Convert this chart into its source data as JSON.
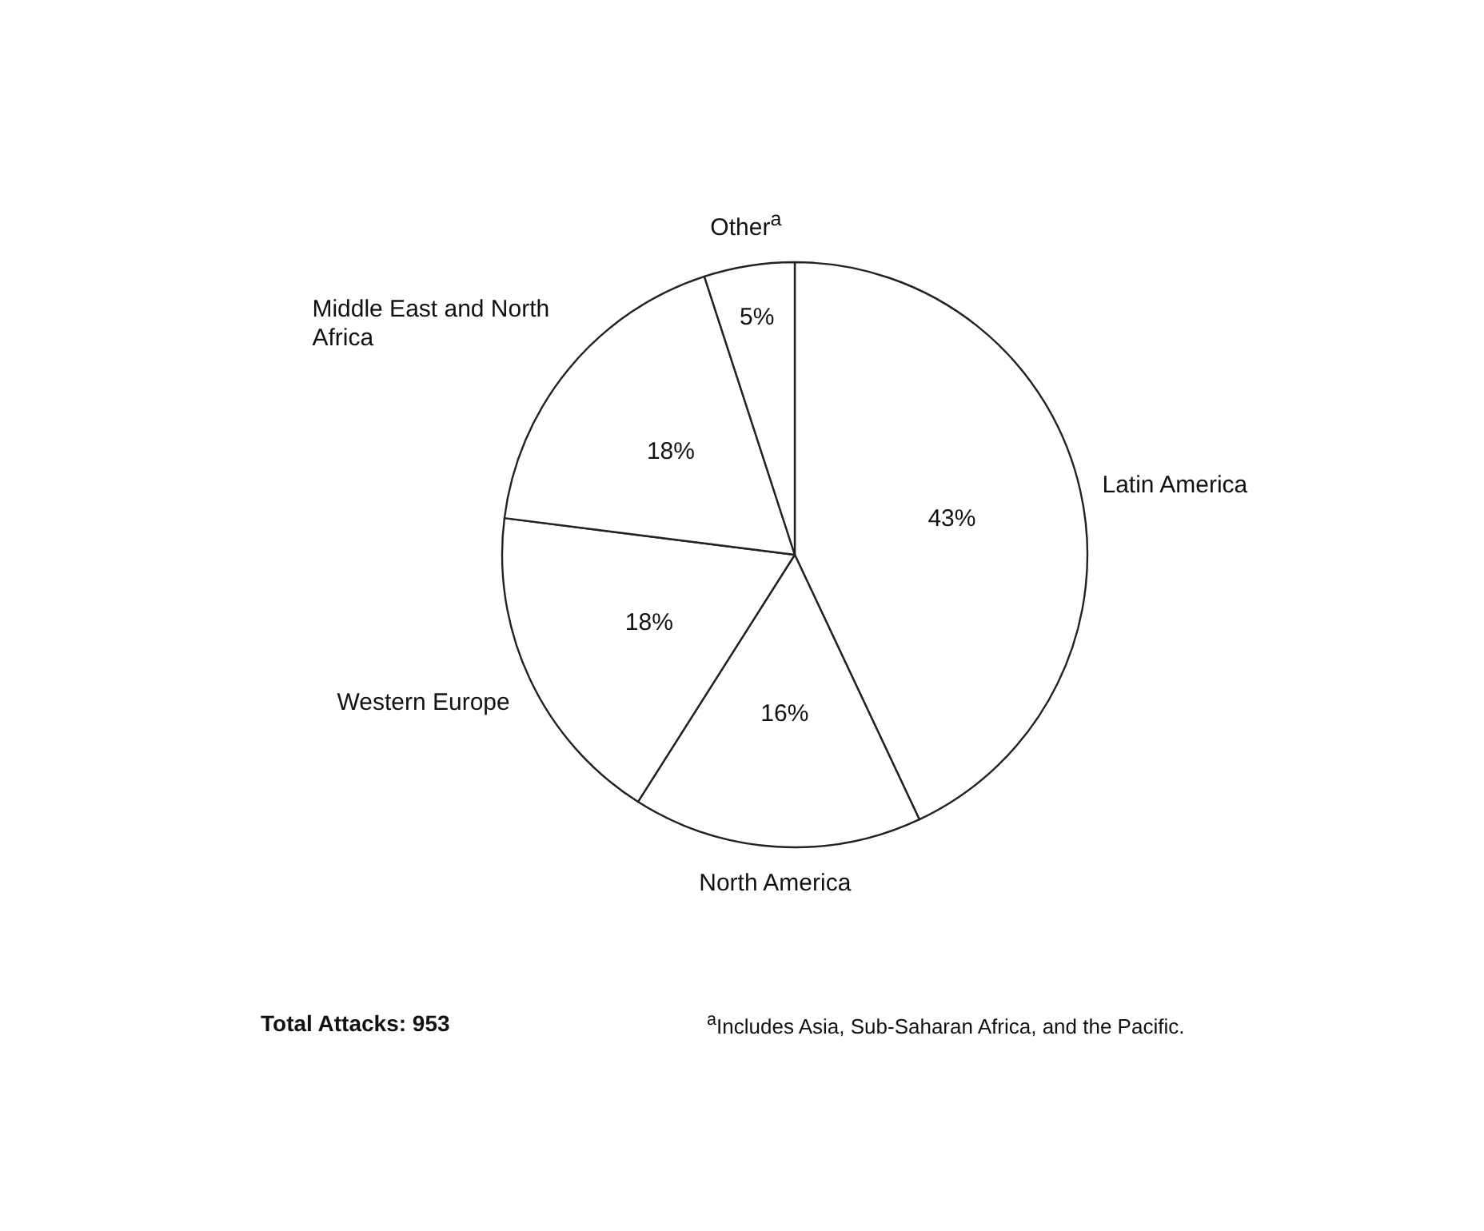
{
  "chart_data": {
    "type": "pie",
    "categories": [
      "Latin America",
      "North America",
      "Western Europe",
      "Middle East and North Africa",
      "Other$^{a}$"
    ],
    "values": [
      43,
      16,
      18,
      18,
      5
    ],
    "value_labels": [
      "43%",
      "16%",
      "18%",
      "18%",
      "5%"
    ],
    "colors": [
      "#ffffff",
      "#ffffff",
      "#ffffff",
      "#ffffff",
      "#ffffff"
    ],
    "annotations": [
      "Total Attacks: 953",
      "$^{a}$Includes Asia, Sub-Saharan Africa, and the Pacific."
    ]
  }
}
